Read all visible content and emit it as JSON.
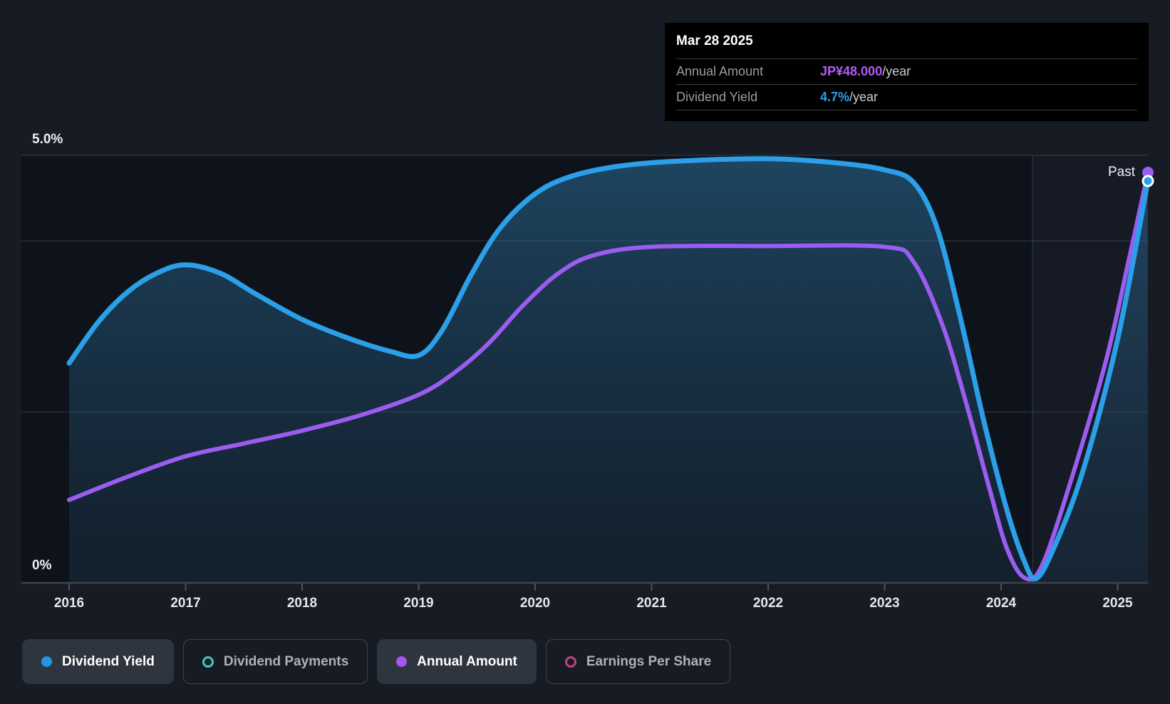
{
  "chart": {
    "y_axis": {
      "top_label": "5.0%",
      "bottom_label": "0%"
    },
    "past_label": "Past"
  },
  "tooltip": {
    "date": "Mar 28 2025",
    "rows": [
      {
        "label": "Annual Amount",
        "value": "JP¥48.000",
        "suffix": "/year",
        "value_color": "#b05cf5"
      },
      {
        "label": "Dividend Yield",
        "value": "4.7%",
        "suffix": "/year",
        "value_color": "#2b9fe8"
      }
    ]
  },
  "legend": [
    {
      "label": "Dividend Yield",
      "marker": "filled",
      "color": "#2493e8",
      "active": true
    },
    {
      "label": "Dividend Payments",
      "marker": "ring",
      "color": "#46c8bc",
      "active": false
    },
    {
      "label": "Annual Amount",
      "marker": "filled",
      "color": "#a557f0",
      "active": true
    },
    {
      "label": "Earnings Per Share",
      "marker": "ring",
      "color": "#c2407e",
      "active": false
    }
  ],
  "chart_data": {
    "type": "area",
    "x_ticks": [
      2016,
      2017,
      2018,
      2019,
      2020,
      2021,
      2022,
      2023,
      2024,
      2025
    ],
    "x_end": 2025.26,
    "past_divider_year": 2024.27,
    "gridlines_pct": [
      5.0,
      4.0,
      2.0
    ],
    "grid": true,
    "legend_position": "bottom",
    "series": [
      {
        "name": "Dividend Yield",
        "unit": "%",
        "ylim": [
          0,
          5
        ],
        "color": "#2b9fe8",
        "fill": true,
        "end_value": 4.7,
        "points": [
          [
            2016.0,
            2.57
          ],
          [
            2016.25,
            3.05
          ],
          [
            2016.5,
            3.4
          ],
          [
            2016.75,
            3.62
          ],
          [
            2017.0,
            3.72
          ],
          [
            2017.3,
            3.62
          ],
          [
            2017.6,
            3.38
          ],
          [
            2018.0,
            3.08
          ],
          [
            2018.4,
            2.86
          ],
          [
            2018.75,
            2.71
          ],
          [
            2019.0,
            2.66
          ],
          [
            2019.2,
            2.95
          ],
          [
            2019.45,
            3.6
          ],
          [
            2019.7,
            4.15
          ],
          [
            2020.0,
            4.55
          ],
          [
            2020.3,
            4.75
          ],
          [
            2020.7,
            4.87
          ],
          [
            2021.2,
            4.93
          ],
          [
            2022.0,
            4.96
          ],
          [
            2022.6,
            4.91
          ],
          [
            2023.0,
            4.83
          ],
          [
            2023.25,
            4.68
          ],
          [
            2023.45,
            4.15
          ],
          [
            2023.65,
            3.1
          ],
          [
            2023.85,
            1.9
          ],
          [
            2024.05,
            0.85
          ],
          [
            2024.2,
            0.25
          ],
          [
            2024.3,
            0.05
          ],
          [
            2024.45,
            0.4
          ],
          [
            2024.7,
            1.3
          ],
          [
            2025.0,
            2.85
          ],
          [
            2025.26,
            4.7
          ]
        ]
      },
      {
        "name": "Annual Amount",
        "unit": "JP¥/year",
        "ylim": [
          0,
          50
        ],
        "color": "#9b5cf0",
        "fill": false,
        "end_value": 48,
        "points": [
          [
            2016.0,
            9.7
          ],
          [
            2016.5,
            12.4
          ],
          [
            2017.0,
            14.8
          ],
          [
            2017.5,
            16.3
          ],
          [
            2018.0,
            17.8
          ],
          [
            2018.5,
            19.6
          ],
          [
            2019.0,
            22.0
          ],
          [
            2019.3,
            24.5
          ],
          [
            2019.6,
            28.0
          ],
          [
            2019.9,
            32.5
          ],
          [
            2020.2,
            36.2
          ],
          [
            2020.5,
            38.3
          ],
          [
            2021.0,
            39.3
          ],
          [
            2022.0,
            39.4
          ],
          [
            2023.0,
            39.3
          ],
          [
            2023.25,
            37.5
          ],
          [
            2023.5,
            30.0
          ],
          [
            2023.7,
            21.0
          ],
          [
            2023.9,
            11.0
          ],
          [
            2024.05,
            4.0
          ],
          [
            2024.2,
            0.6
          ],
          [
            2024.35,
            2.0
          ],
          [
            2024.6,
            12.0
          ],
          [
            2024.9,
            26.0
          ],
          [
            2025.1,
            38.0
          ],
          [
            2025.26,
            48.0
          ]
        ]
      }
    ]
  }
}
